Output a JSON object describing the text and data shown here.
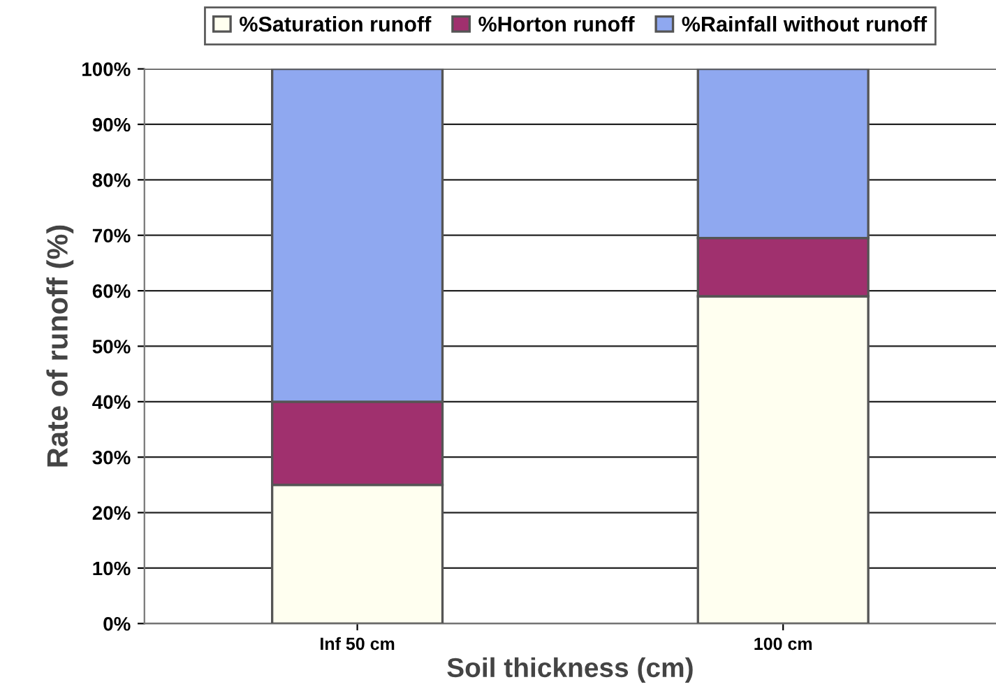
{
  "chart_data": {
    "type": "bar",
    "stacked": true,
    "xlabel": "Soil thickness (cm)",
    "ylabel": "Rate of runoff (%)",
    "categories": [
      "Inf 50 cm",
      "100 cm"
    ],
    "series": [
      {
        "name": "%Saturation runoff",
        "color": "#fffff0",
        "values": [
          25,
          59
        ]
      },
      {
        "name": "%Horton runoff",
        "color": "#a0306e",
        "values": [
          15,
          10.5
        ]
      },
      {
        "name": "%Rainfall without runoff",
        "color": "#8fa8f0",
        "values": [
          60,
          30.5
        ]
      }
    ],
    "ylim": [
      0,
      100
    ],
    "yticks": [
      {
        "value": 0,
        "label": "0%"
      },
      {
        "value": 10,
        "label": "10%"
      },
      {
        "value": 20,
        "label": "20%"
      },
      {
        "value": 30,
        "label": "30%"
      },
      {
        "value": 40,
        "label": "40%"
      },
      {
        "value": 50,
        "label": "50%"
      },
      {
        "value": 60,
        "label": "60%"
      },
      {
        "value": 70,
        "label": "70%"
      },
      {
        "value": 80,
        "label": "80%"
      },
      {
        "value": 90,
        "label": "90%"
      },
      {
        "value": 100,
        "label": "100%"
      }
    ],
    "grid": "y",
    "legend": "top"
  }
}
